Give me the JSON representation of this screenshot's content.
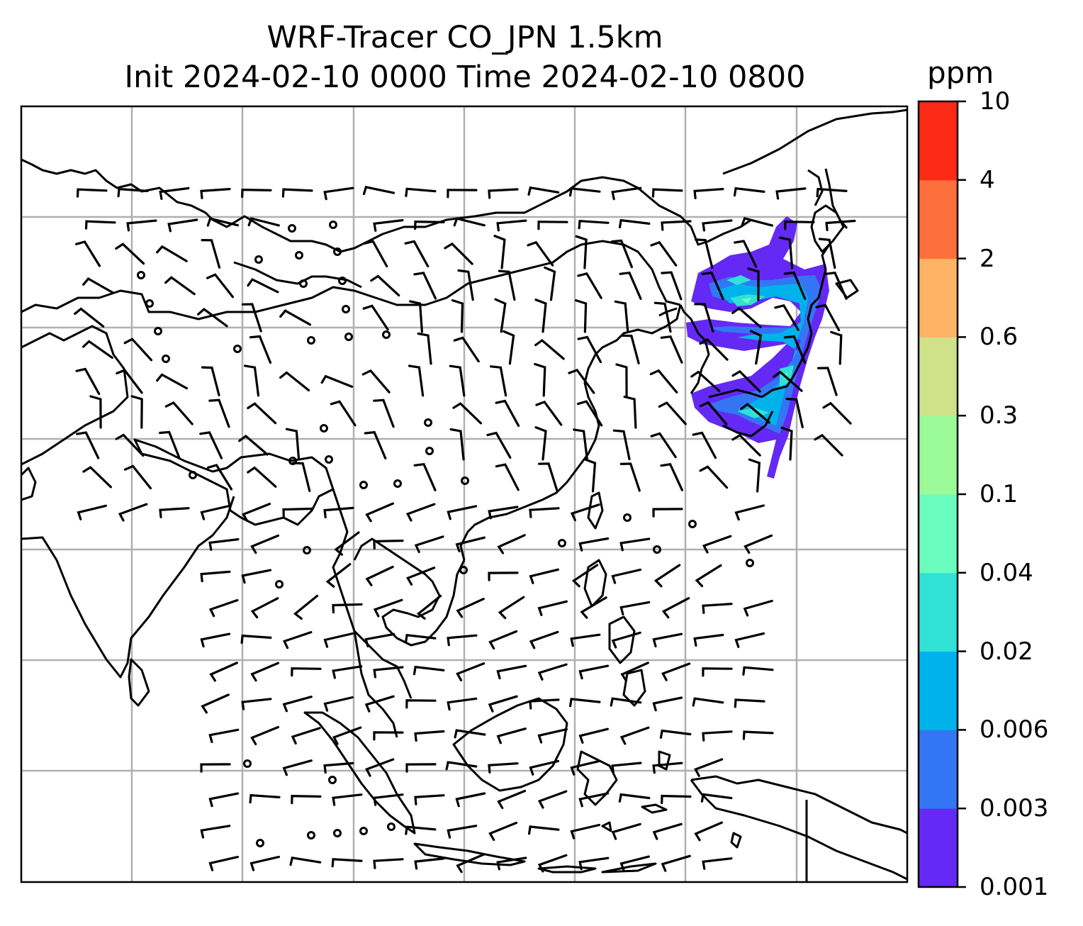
{
  "title": {
    "line1": "WRF-Tracer CO_JPN 1.5km",
    "line2": "Init 2024-02-10 0000 Time 2024-02-10 0800"
  },
  "colorbar": {
    "unit": "ppm",
    "ticks": [
      "0.001",
      "0.003",
      "0.006",
      "0.02",
      "0.04",
      "0.1",
      "0.3",
      "0.6",
      "2",
      "4",
      "10"
    ],
    "colors": [
      "#6429f4",
      "#3276f4",
      "#00b2ec",
      "#31e1d5",
      "#6afcbd",
      "#9bfb99",
      "#d0e18a",
      "#fdb465",
      "#fd703e",
      "#fd2a17"
    ]
  },
  "map": {
    "gridlines": true,
    "feature_color": "#000000",
    "grid_color": "#b0b0b0"
  }
}
